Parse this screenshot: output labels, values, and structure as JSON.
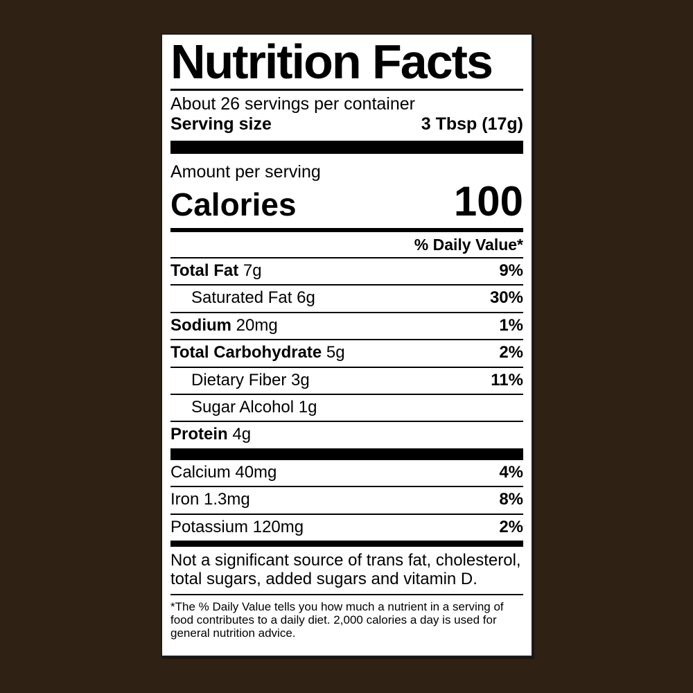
{
  "colors": {
    "page_background": "#2f2114",
    "label_background": "#ffffff",
    "text_and_rules": "#000000"
  },
  "label": {
    "title": "Nutrition Facts",
    "servings_per_container": "About 26 servings per container",
    "serving_size_label": "Serving size",
    "serving_size_value": "3 Tbsp (17g)",
    "amount_per_serving": "Amount per serving",
    "calories_label": "Calories",
    "calories_value": "100",
    "daily_value_header": "% Daily Value*",
    "nutrients": [
      {
        "name": "Total Fat",
        "amount": "7g",
        "dv": "9%",
        "bold": true,
        "indent": 0
      },
      {
        "name": "Saturated Fat",
        "amount": "6g",
        "dv": "30%",
        "bold": false,
        "indent": 1
      },
      {
        "name": "Sodium",
        "amount": "20mg",
        "dv": "1%",
        "bold": true,
        "indent": 0
      },
      {
        "name": "Total Carbohydrate",
        "amount": "5g",
        "dv": "2%",
        "bold": true,
        "indent": 0
      },
      {
        "name": "Dietary Fiber",
        "amount": "3g",
        "dv": "11%",
        "bold": false,
        "indent": 1
      },
      {
        "name": "Sugar Alcohol",
        "amount": "1g",
        "dv": "",
        "bold": false,
        "indent": 1
      },
      {
        "name": "Protein",
        "amount": "4g",
        "dv": "",
        "bold": true,
        "indent": 0
      }
    ],
    "minerals": [
      {
        "name": "Calcium",
        "amount": "40mg",
        "dv": "4%",
        "bold": false,
        "indent": 0
      },
      {
        "name": "Iron",
        "amount": "1.3mg",
        "dv": "8%",
        "bold": false,
        "indent": 0
      },
      {
        "name": "Potassium",
        "amount": "120mg",
        "dv": "2%",
        "bold": false,
        "indent": 0
      }
    ],
    "not_significant_note": "Not a significant source of trans fat, cholesterol, total sugars, added sugars and vitamin D.",
    "footnote": "*The % Daily Value tells you how much a nutrient in a serving of food contributes to a daily diet. 2,000 calories a day is used for general nutrition advice."
  }
}
